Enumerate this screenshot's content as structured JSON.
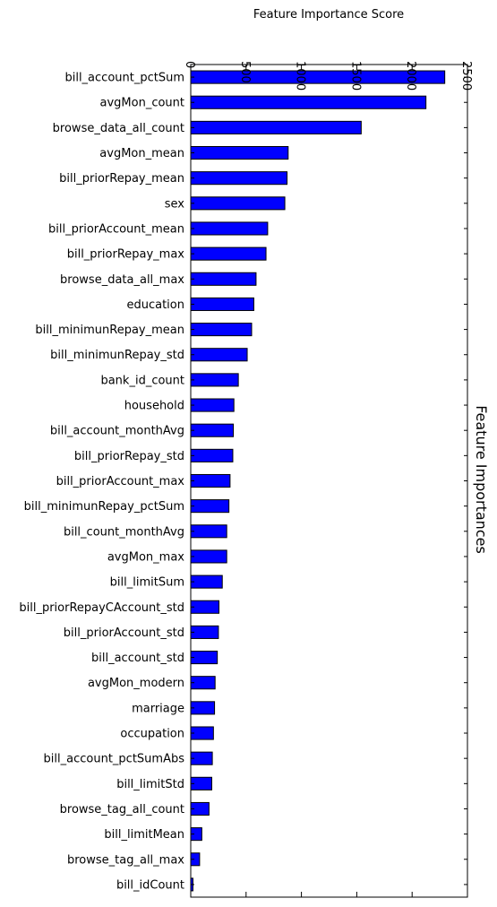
{
  "chart_data": {
    "type": "bar",
    "orientation": "horizontal",
    "title": "Feature Importances",
    "xlabel": "Feature Importance Score",
    "ylabel": "",
    "xlim": [
      0,
      2500
    ],
    "xticks": [
      0,
      500,
      1000,
      1500,
      2000,
      2500
    ],
    "xtick_labels": [
      "0",
      "500",
      "1000",
      "1500",
      "2000",
      "2500"
    ],
    "bar_color": "#0000ff",
    "edge_color": "#000000",
    "categories": [
      "bill_account_pctSum",
      "avgMon_count",
      "browse_data_all_count",
      "avgMon_mean",
      "bill_priorRepay_mean",
      "sex",
      "bill_priorAccount_mean",
      "bill_priorRepay_max",
      "browse_data_all_max",
      "education",
      "bill_minimunRepay_mean",
      "bill_minimunRepay_std",
      "bank_id_count",
      "household",
      "bill_account_monthAvg",
      "bill_priorRepay_std",
      "bill_priorAccount_max",
      "bill_minimunRepay_pctSum",
      "bill_count_monthAvg",
      "avgMon_max",
      "bill_limitSum",
      "bill_priorRepayCAccount_std",
      "bill_priorAccount_std",
      "bill_account_std",
      "avgMon_modern",
      "marriage",
      "occupation",
      "bill_account_pctSumAbs",
      "bill_limitStd",
      "browse_tag_all_count",
      "bill_limitMean",
      "browse_tag_all_max",
      "bill_idCount"
    ],
    "values": [
      2295,
      2125,
      1540,
      880,
      870,
      850,
      695,
      680,
      590,
      570,
      550,
      510,
      430,
      390,
      385,
      380,
      355,
      345,
      325,
      325,
      285,
      255,
      250,
      240,
      220,
      215,
      205,
      195,
      190,
      165,
      100,
      80,
      20
    ]
  }
}
